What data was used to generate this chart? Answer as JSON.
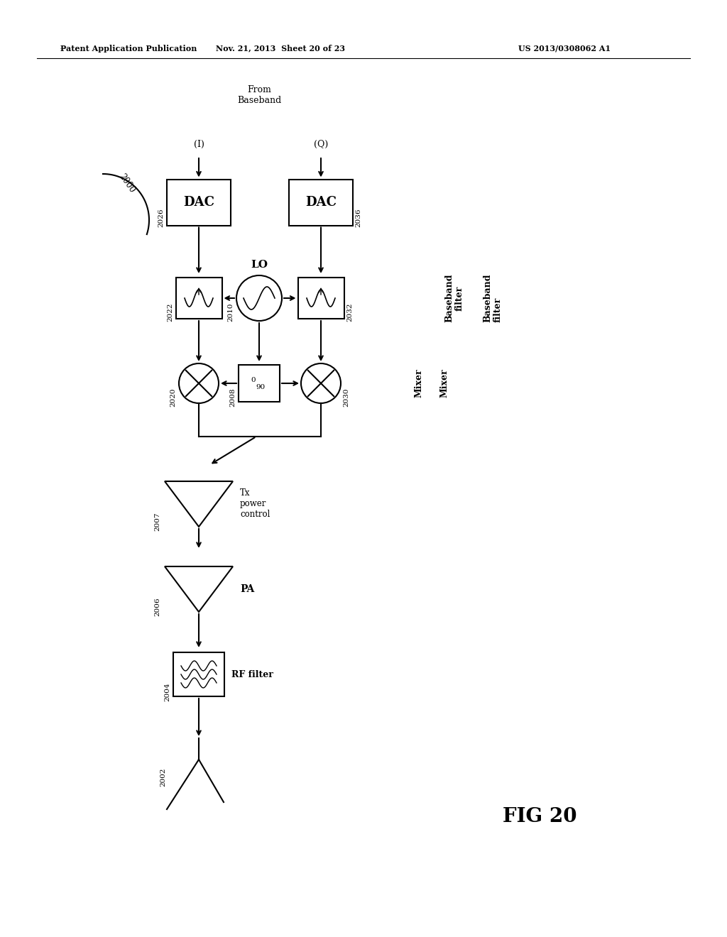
{
  "title_left": "Patent Application Publication",
  "title_mid": "Nov. 21, 2013  Sheet 20 of 23",
  "title_right": "US 2013/0308062 A1",
  "fig_label": "FIG 20",
  "diagram_number": "2000",
  "bg_color": "#ffffff",
  "components": {
    "dac_i_label": "DAC",
    "dac_i_num": "2026",
    "dac_q_label": "DAC",
    "dac_q_num": "2036",
    "lo_label": "LO",
    "lo_num": "2010",
    "ps_label": "0 90",
    "ps_num": "2008",
    "filt_i_num": "2022",
    "filt_q_num": "2032",
    "mix_i_num": "2020",
    "mix_q_num": "2030",
    "tx_label": "Tx\npower\ncontrol",
    "tx_num": "2007",
    "pa_label": "PA",
    "pa_num": "2006",
    "rf_label": "RF filter",
    "rf_num": "2004",
    "ant_num": "2002",
    "from_bb": "From\nBaseband",
    "inp_i": "(I)",
    "inp_q": "(Q)",
    "mixer_side": "Mixer",
    "bbfilt_side": "Baseband\nfilter"
  }
}
